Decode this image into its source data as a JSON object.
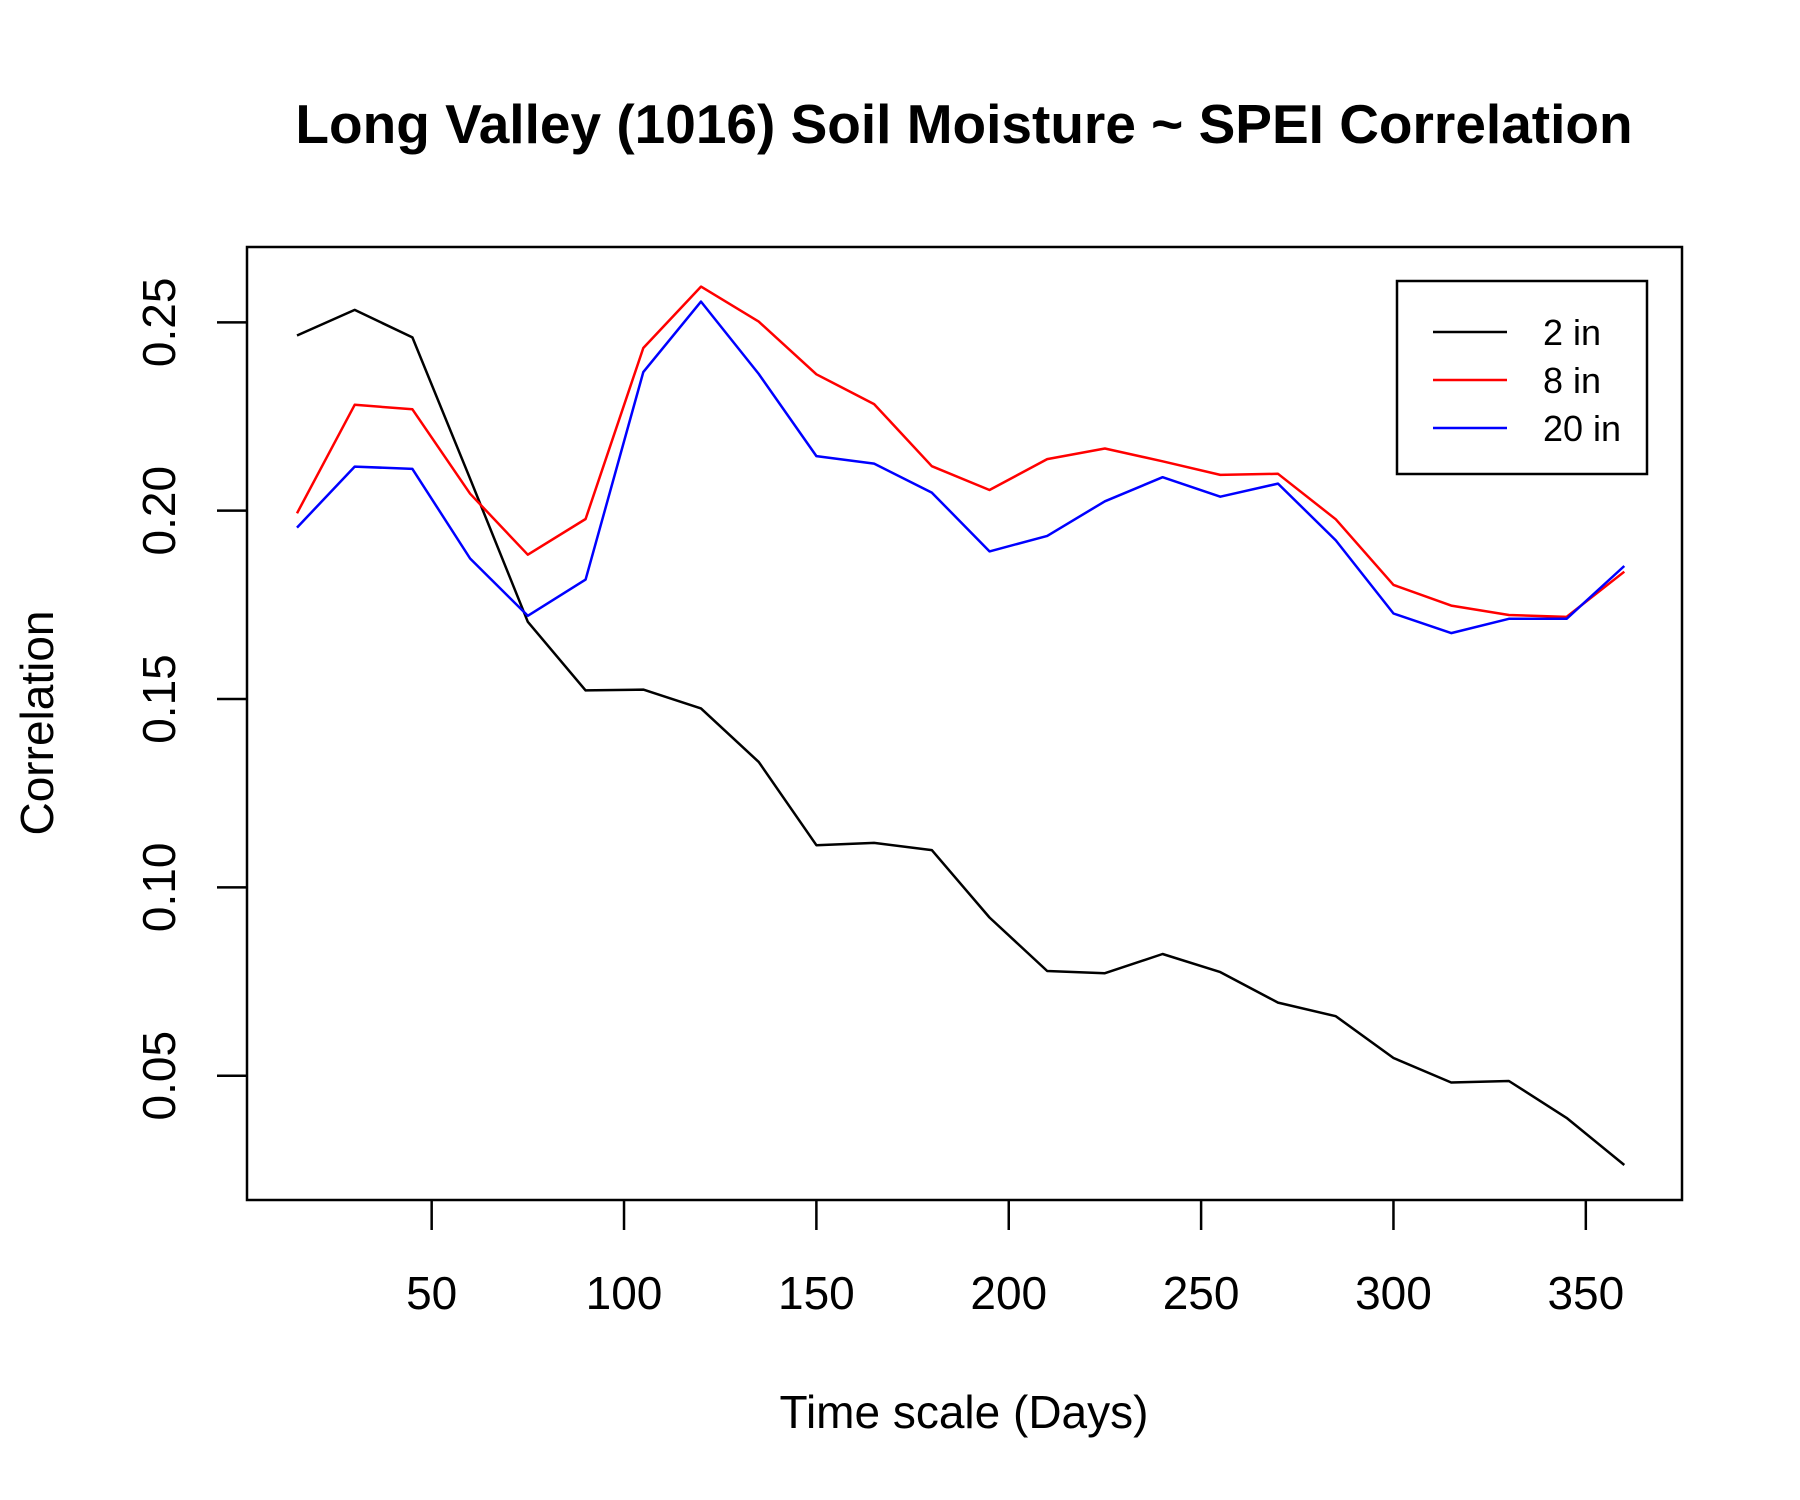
{
  "chart_data": {
    "type": "line",
    "title": "Long Valley (1016) Soil Moisture ~ SPEI Correlation",
    "xlabel": "Time scale (Days)",
    "ylabel": "Correlation",
    "xlim": [
      2,
      375
    ],
    "ylim": [
      0.017,
      0.27
    ],
    "x_ticks": [
      50,
      100,
      150,
      200,
      250,
      300,
      350
    ],
    "x_tick_labels": [
      "50",
      "100",
      "150",
      "200",
      "250",
      "300",
      "350"
    ],
    "y_ticks": [
      0.05,
      0.1,
      0.15,
      0.2,
      0.25
    ],
    "y_tick_labels": [
      "0.05",
      "0.10",
      "0.15",
      "0.20",
      "0.25"
    ],
    "grid": false,
    "legend_position": "top-right",
    "x": [
      15,
      30,
      45,
      60,
      75,
      90,
      105,
      120,
      135,
      150,
      165,
      180,
      195,
      210,
      225,
      240,
      255,
      270,
      285,
      300,
      315,
      330,
      345,
      360
    ],
    "series": [
      {
        "name": "2 in",
        "color": "#000000",
        "values": [
          0.2465,
          0.2533,
          0.246,
          0.2085,
          0.1705,
          0.1523,
          0.1525,
          0.1475,
          0.1333,
          0.1112,
          0.1118,
          0.1099,
          0.092,
          0.0778,
          0.0772,
          0.0823,
          0.0775,
          0.0694,
          0.0658,
          0.0547,
          0.0482,
          0.0486,
          0.0388,
          0.0263
        ]
      },
      {
        "name": "8 in",
        "color": "#ff0000",
        "values": [
          0.1993,
          0.2281,
          0.2269,
          0.2045,
          0.1883,
          0.1978,
          0.2432,
          0.2595,
          0.2502,
          0.2362,
          0.2283,
          0.2118,
          0.2055,
          0.2137,
          0.2165,
          0.2131,
          0.2095,
          0.2098,
          0.1977,
          0.1803,
          0.1748,
          0.1723,
          0.1718,
          0.1838
        ]
      },
      {
        "name": "20 in",
        "color": "#0000ff",
        "values": [
          0.1955,
          0.2117,
          0.2111,
          0.1873,
          0.1721,
          0.1817,
          0.2368,
          0.2555,
          0.2363,
          0.2145,
          0.2125,
          0.2048,
          0.1892,
          0.1933,
          0.2025,
          0.2089,
          0.2037,
          0.2072,
          0.1921,
          0.1727,
          0.1675,
          0.1713,
          0.1713,
          0.1853
        ]
      }
    ]
  }
}
